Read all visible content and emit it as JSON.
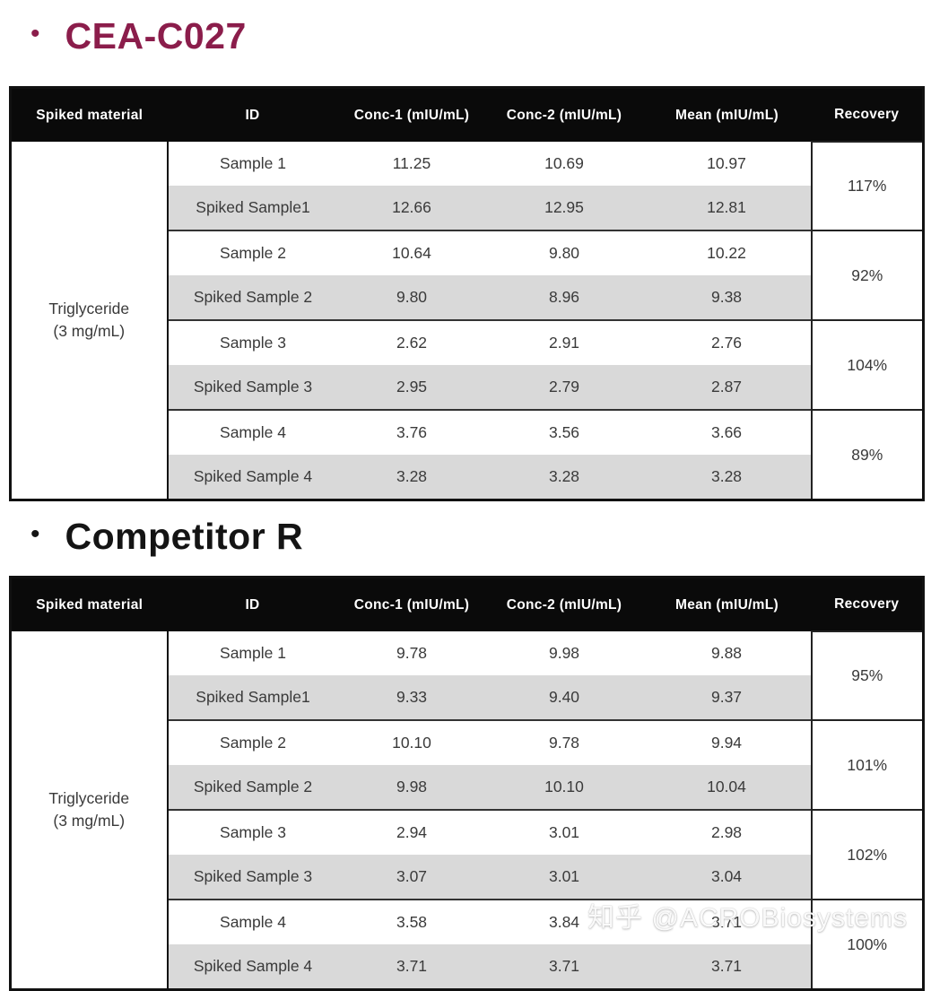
{
  "watermark": {
    "text": "知乎 @ACROBiosystems"
  },
  "colors": {
    "accent_title": "#8b1d4b",
    "header_bg": "#0a0a0a",
    "stripe": "#d9d9d9",
    "border": "#111111"
  },
  "sections": [
    {
      "bullet": "•",
      "title": "CEA-C027",
      "table": {
        "columns": [
          "Spiked material",
          "ID",
          "Conc-1 (mIU/mL)",
          "Conc-2 (mIU/mL)",
          "Mean (mIU/mL)",
          "Recovery"
        ],
        "material": {
          "line1": "Triglyceride",
          "line2": "(3 mg/mL)"
        },
        "groups": [
          {
            "rows": [
              {
                "id": "Sample 1",
                "conc1": "11.25",
                "conc2": "10.69",
                "mean": "10.97"
              },
              {
                "id": "Spiked Sample1",
                "conc1": "12.66",
                "conc2": "12.95",
                "mean": "12.81"
              }
            ],
            "recovery": "117%"
          },
          {
            "rows": [
              {
                "id": "Sample 2",
                "conc1": "10.64",
                "conc2": "9.80",
                "mean": "10.22"
              },
              {
                "id": "Spiked Sample 2",
                "conc1": "9.80",
                "conc2": "8.96",
                "mean": "9.38"
              }
            ],
            "recovery": "92%"
          },
          {
            "rows": [
              {
                "id": "Sample 3",
                "conc1": "2.62",
                "conc2": "2.91",
                "mean": "2.76"
              },
              {
                "id": "Spiked Sample 3",
                "conc1": "2.95",
                "conc2": "2.79",
                "mean": "2.87"
              }
            ],
            "recovery": "104%"
          },
          {
            "rows": [
              {
                "id": "Sample 4",
                "conc1": "3.76",
                "conc2": "3.56",
                "mean": "3.66"
              },
              {
                "id": "Spiked Sample 4",
                "conc1": "3.28",
                "conc2": "3.28",
                "mean": "3.28"
              }
            ],
            "recovery": "89%"
          }
        ]
      }
    },
    {
      "bullet": "•",
      "title": "Competitor R",
      "table": {
        "columns": [
          "Spiked material",
          "ID",
          "Conc-1 (mIU/mL)",
          "Conc-2 (mIU/mL)",
          "Mean (mIU/mL)",
          "Recovery"
        ],
        "material": {
          "line1": "Triglyceride",
          "line2": "(3 mg/mL)"
        },
        "groups": [
          {
            "rows": [
              {
                "id": "Sample 1",
                "conc1": "9.78",
                "conc2": "9.98",
                "mean": "9.88"
              },
              {
                "id": "Spiked Sample1",
                "conc1": "9.33",
                "conc2": "9.40",
                "mean": "9.37"
              }
            ],
            "recovery": "95%"
          },
          {
            "rows": [
              {
                "id": "Sample 2",
                "conc1": "10.10",
                "conc2": "9.78",
                "mean": "9.94"
              },
              {
                "id": "Spiked Sample 2",
                "conc1": "9.98",
                "conc2": "10.10",
                "mean": "10.04"
              }
            ],
            "recovery": "101%"
          },
          {
            "rows": [
              {
                "id": "Sample 3",
                "conc1": "2.94",
                "conc2": "3.01",
                "mean": "2.98"
              },
              {
                "id": "Spiked Sample 3",
                "conc1": "3.07",
                "conc2": "3.01",
                "mean": "3.04"
              }
            ],
            "recovery": "102%"
          },
          {
            "rows": [
              {
                "id": "Sample 4",
                "conc1": "3.58",
                "conc2": "3.84",
                "mean": "3.71"
              },
              {
                "id": "Spiked Sample 4",
                "conc1": "3.71",
                "conc2": "3.71",
                "mean": "3.71"
              }
            ],
            "recovery": "100%"
          }
        ]
      }
    }
  ]
}
